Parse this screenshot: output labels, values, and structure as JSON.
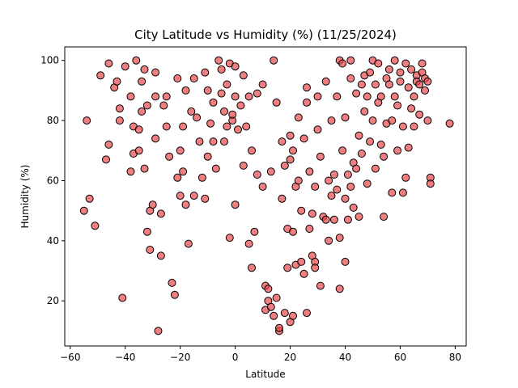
{
  "chart_data": {
    "type": "scatter",
    "title": "City Latitude vs Humidity (%) (11/25/2024)",
    "xlabel": "Latitude",
    "ylabel": "Humidity (%)",
    "xlim": [
      -62,
      84
    ],
    "ylim": [
      5,
      104.5
    ],
    "xticks": [
      -60,
      -40,
      -20,
      0,
      20,
      40,
      60,
      80
    ],
    "yticks": [
      20,
      40,
      60,
      80,
      100
    ],
    "grid": false,
    "marker_color": "#e8474c",
    "marker_opacity": 0.7,
    "marker_edge_color": "#000000",
    "series": [
      {
        "name": "",
        "points": [
          [
            -55,
            50
          ],
          [
            -54,
            80
          ],
          [
            -53,
            54
          ],
          [
            -51,
            45
          ],
          [
            -49,
            95
          ],
          [
            -47,
            67
          ],
          [
            -46,
            72
          ],
          [
            -46,
            99
          ],
          [
            -44,
            91
          ],
          [
            -43,
            93
          ],
          [
            -42,
            84
          ],
          [
            -42,
            80
          ],
          [
            -41,
            21
          ],
          [
            -40,
            98
          ],
          [
            -38,
            88
          ],
          [
            -38,
            63
          ],
          [
            -37,
            78
          ],
          [
            -37,
            69
          ],
          [
            -36,
            100
          ],
          [
            -35,
            77
          ],
          [
            -35,
            70
          ],
          [
            -34,
            83
          ],
          [
            -34,
            93
          ],
          [
            -33,
            64
          ],
          [
            -33,
            97
          ],
          [
            -32,
            85
          ],
          [
            -32,
            43
          ],
          [
            -31,
            37
          ],
          [
            -31,
            50
          ],
          [
            -30,
            52
          ],
          [
            -29,
            96
          ],
          [
            -29,
            88
          ],
          [
            -29,
            74
          ],
          [
            -28,
            10
          ],
          [
            -27,
            49
          ],
          [
            -27,
            35
          ],
          [
            -26,
            85
          ],
          [
            -25,
            88
          ],
          [
            -25,
            78
          ],
          [
            -24,
            68
          ],
          [
            -23,
            26
          ],
          [
            -22,
            22
          ],
          [
            -21,
            94
          ],
          [
            -21,
            61
          ],
          [
            -20,
            55
          ],
          [
            -20,
            70
          ],
          [
            -19,
            78
          ],
          [
            -19,
            63
          ],
          [
            -18,
            52
          ],
          [
            -18,
            90
          ],
          [
            -17,
            39
          ],
          [
            -16,
            83
          ],
          [
            -15,
            55
          ],
          [
            -15,
            94
          ],
          [
            -14,
            81
          ],
          [
            -13,
            73
          ],
          [
            -12,
            61
          ],
          [
            -11,
            54
          ],
          [
            -11,
            96
          ],
          [
            -10,
            90
          ],
          [
            -10,
            68
          ],
          [
            -9,
            79
          ],
          [
            -8,
            86
          ],
          [
            -8,
            73
          ],
          [
            -7,
            64
          ],
          [
            -6,
            100
          ],
          [
            -5,
            97
          ],
          [
            -5,
            89
          ],
          [
            -4,
            83
          ],
          [
            -4,
            73
          ],
          [
            -3,
            92
          ],
          [
            -3,
            78
          ],
          [
            -2,
            99
          ],
          [
            -2,
            41
          ],
          [
            -1,
            80
          ],
          [
            -1,
            82
          ],
          [
            0,
            88
          ],
          [
            0,
            98
          ],
          [
            0,
            52
          ],
          [
            1,
            77
          ],
          [
            2,
            85
          ],
          [
            3,
            65
          ],
          [
            3,
            95
          ],
          [
            4,
            78
          ],
          [
            5,
            88
          ],
          [
            5,
            39
          ],
          [
            6,
            70
          ],
          [
            6,
            31
          ],
          [
            7,
            43
          ],
          [
            8,
            89
          ],
          [
            8,
            62
          ],
          [
            10,
            92
          ],
          [
            10,
            58
          ],
          [
            11,
            25
          ],
          [
            11,
            17
          ],
          [
            12,
            24
          ],
          [
            12,
            20
          ],
          [
            13,
            18
          ],
          [
            13,
            63
          ],
          [
            14,
            15
          ],
          [
            14,
            100
          ],
          [
            15,
            21
          ],
          [
            15,
            86
          ],
          [
            16,
            10
          ],
          [
            16,
            11
          ],
          [
            17,
            54
          ],
          [
            17,
            73
          ],
          [
            18,
            65
          ],
          [
            18,
            16
          ],
          [
            19,
            44
          ],
          [
            19,
            31
          ],
          [
            20,
            75
          ],
          [
            20,
            13
          ],
          [
            20,
            67
          ],
          [
            21,
            43
          ],
          [
            21,
            15
          ],
          [
            21,
            70
          ],
          [
            22,
            58
          ],
          [
            22,
            32
          ],
          [
            23,
            81
          ],
          [
            23,
            60
          ],
          [
            24,
            33
          ],
          [
            24,
            50
          ],
          [
            25,
            29
          ],
          [
            25,
            74
          ],
          [
            26,
            86
          ],
          [
            26,
            16
          ],
          [
            26,
            91
          ],
          [
            27,
            44
          ],
          [
            27,
            63
          ],
          [
            28,
            49
          ],
          [
            28,
            35
          ],
          [
            29,
            33
          ],
          [
            29,
            58
          ],
          [
            29,
            31
          ],
          [
            30,
            88
          ],
          [
            30,
            77
          ],
          [
            31,
            25
          ],
          [
            31,
            68
          ],
          [
            32,
            48
          ],
          [
            33,
            47
          ],
          [
            33,
            93
          ],
          [
            34,
            60
          ],
          [
            34,
            40
          ],
          [
            35,
            55
          ],
          [
            35,
            80
          ],
          [
            36,
            62
          ],
          [
            36,
            47
          ],
          [
            37,
            57
          ],
          [
            37,
            88
          ],
          [
            38,
            100
          ],
          [
            38,
            24
          ],
          [
            38,
            41
          ],
          [
            39,
            99
          ],
          [
            39,
            70
          ],
          [
            40,
            33
          ],
          [
            40,
            54
          ],
          [
            40,
            81
          ],
          [
            41,
            62
          ],
          [
            41,
            47
          ],
          [
            42,
            58
          ],
          [
            42,
            94
          ],
          [
            42,
            100
          ],
          [
            43,
            66
          ],
          [
            43,
            51
          ],
          [
            44,
            89
          ],
          [
            44,
            64
          ],
          [
            45,
            75
          ],
          [
            45,
            48
          ],
          [
            46,
            92
          ],
          [
            46,
            69
          ],
          [
            47,
            95
          ],
          [
            47,
            83
          ],
          [
            48,
            88
          ],
          [
            48,
            59
          ],
          [
            49,
            96
          ],
          [
            49,
            73
          ],
          [
            50,
            100
          ],
          [
            50,
            80
          ],
          [
            51,
            64
          ],
          [
            51,
            92
          ],
          [
            52,
            86
          ],
          [
            52,
            99
          ],
          [
            53,
            72
          ],
          [
            53,
            88
          ],
          [
            54,
            48
          ],
          [
            54,
            68
          ],
          [
            55,
            94
          ],
          [
            55,
            79
          ],
          [
            56,
            92
          ],
          [
            56,
            97
          ],
          [
            57,
            56
          ],
          [
            57,
            80
          ],
          [
            58,
            88
          ],
          [
            58,
            100
          ],
          [
            59,
            85
          ],
          [
            59,
            70
          ],
          [
            60,
            96
          ],
          [
            60,
            93
          ],
          [
            61,
            56
          ],
          [
            61,
            78
          ],
          [
            62,
            99
          ],
          [
            62,
            61
          ],
          [
            63,
            91
          ],
          [
            63,
            71
          ],
          [
            64,
            97
          ],
          [
            64,
            84
          ],
          [
            65,
            88
          ],
          [
            65,
            78
          ],
          [
            66,
            95
          ],
          [
            66,
            93
          ],
          [
            67,
            92
          ],
          [
            67,
            82
          ],
          [
            68,
            96
          ],
          [
            68,
            99
          ],
          [
            69,
            94
          ],
          [
            69,
            90
          ],
          [
            70,
            93
          ],
          [
            70,
            80
          ],
          [
            71,
            61
          ],
          [
            71,
            59
          ],
          [
            78,
            79
          ]
        ]
      }
    ]
  }
}
